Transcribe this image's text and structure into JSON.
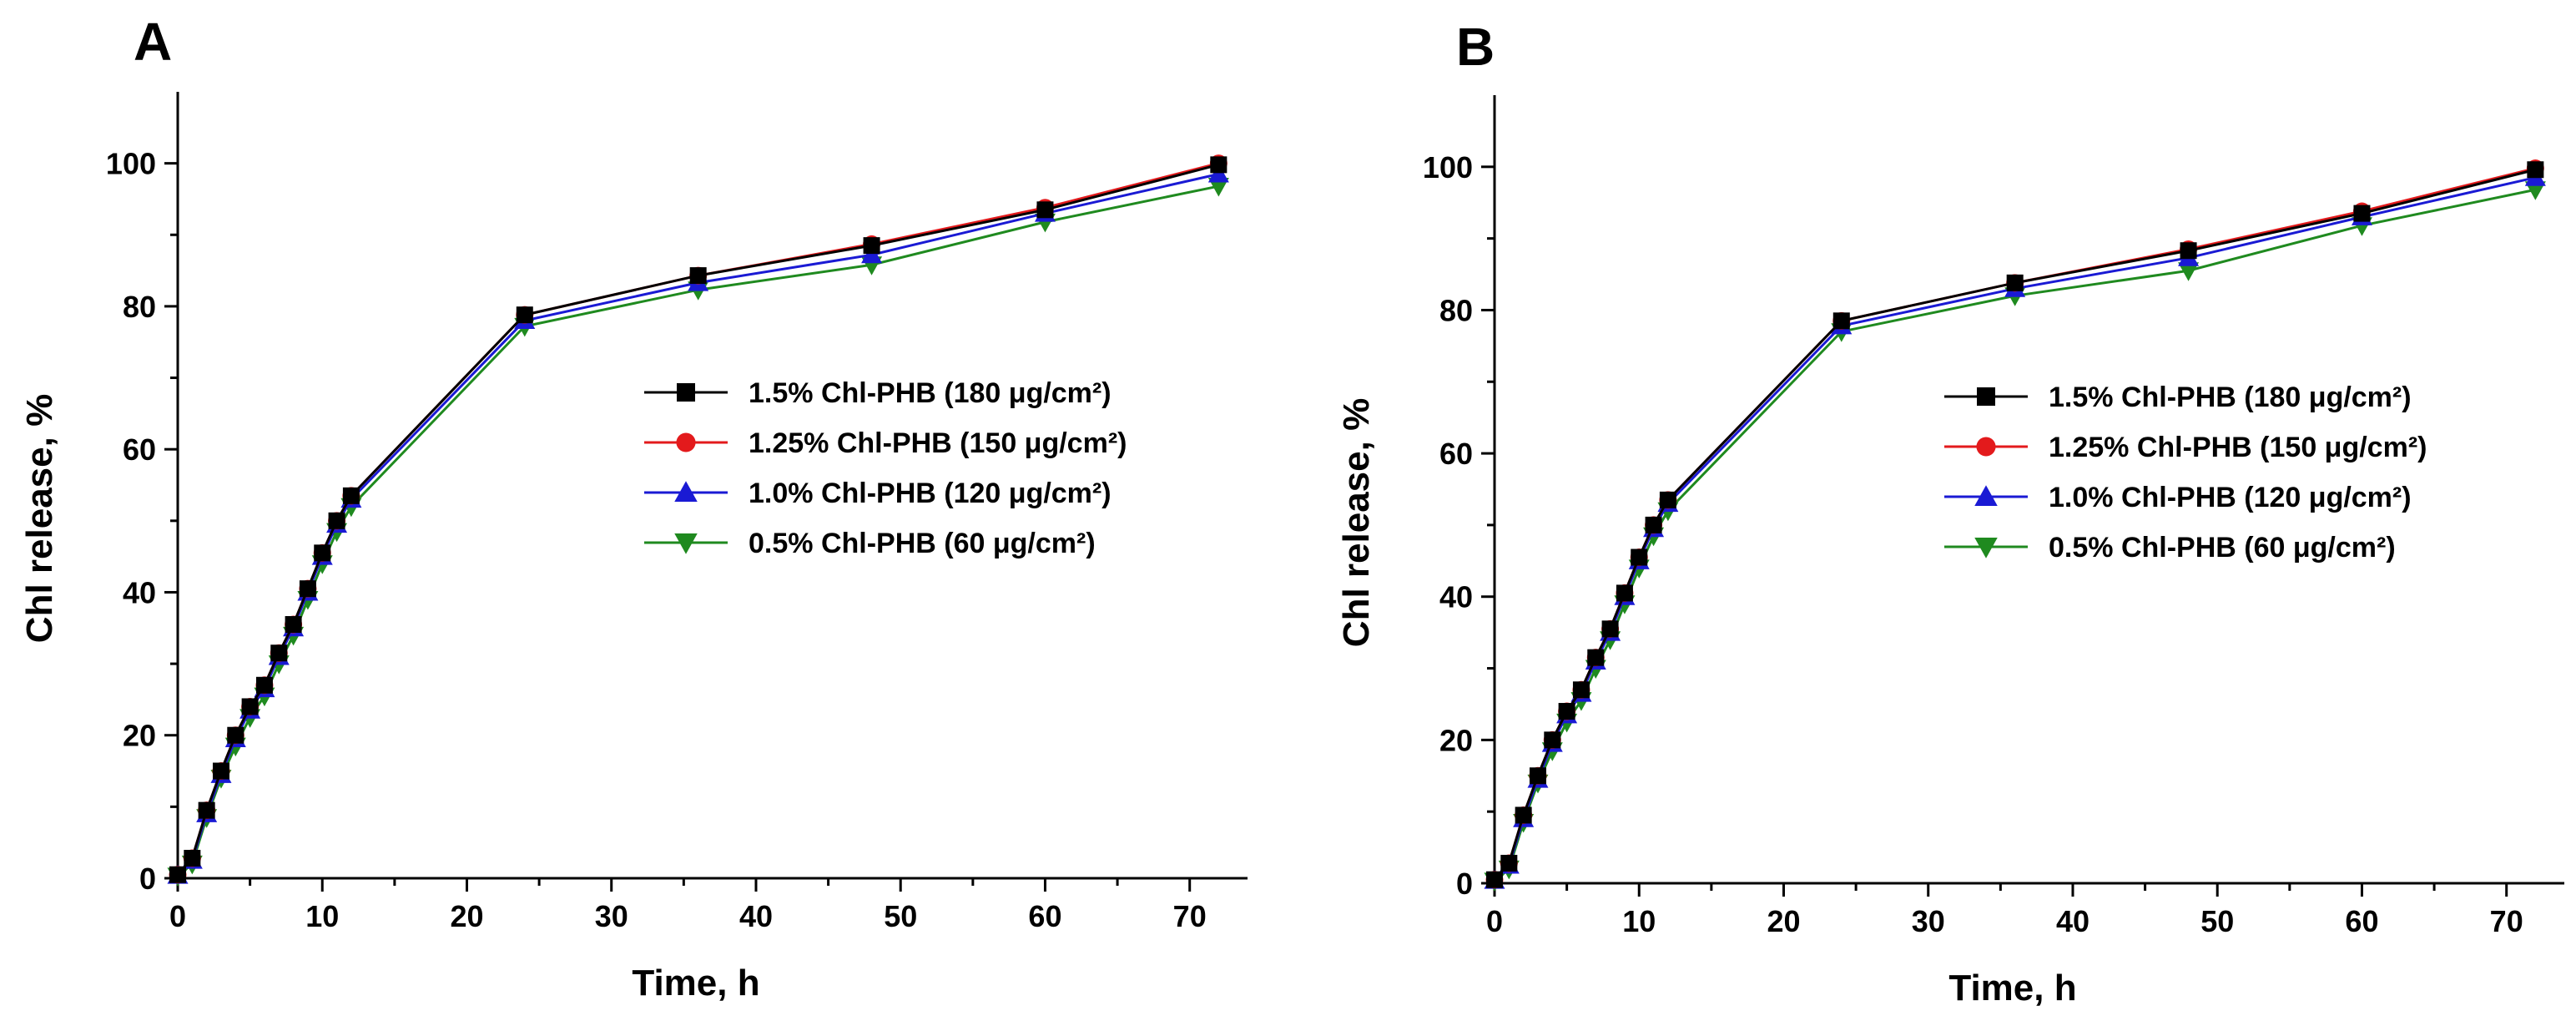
{
  "chart_data": [
    {
      "type": "line",
      "panel": "A",
      "xlabel": "Time, h",
      "ylabel": "Chl release, %",
      "xlim": [
        0,
        74
      ],
      "ylim": [
        0,
        110
      ],
      "xticks": [
        0,
        10,
        20,
        30,
        40,
        50,
        60,
        70
      ],
      "yticks": [
        0,
        20,
        40,
        60,
        80,
        100
      ],
      "x": [
        0,
        1,
        2,
        3,
        4,
        5,
        6,
        7,
        8,
        9,
        10,
        11,
        12,
        24,
        36,
        48,
        60,
        72
      ],
      "legend_position": "center-right",
      "series": [
        {
          "name": "1.5% Chl-PHB",
          "unit_label": "(180 μg/cm²)",
          "color": "#000000",
          "marker": "square",
          "values": [
            0.5,
            2.8,
            9.5,
            15,
            20,
            24,
            27,
            31.5,
            35.5,
            40.5,
            45.5,
            50,
            53.5,
            78.8,
            84.3,
            88.5,
            93.5,
            99.8
          ]
        },
        {
          "name": "1.25% Chl-PHB",
          "unit_label": "(150 μg/cm²)",
          "color": "#e31a1c",
          "marker": "circle",
          "values": [
            0.5,
            2.8,
            9.5,
            15,
            20,
            24,
            27,
            31.5,
            35.5,
            40.5,
            45.5,
            50,
            53.5,
            78.8,
            84.3,
            88.7,
            93.8,
            100
          ]
        },
        {
          "name": "1.0% Chl-PHB",
          "unit_label": "(120 μg/cm²)",
          "color": "#1a1ad4",
          "marker": "triangle-up",
          "values": [
            0.4,
            2.5,
            9,
            14.5,
            19.5,
            23.5,
            26.5,
            31,
            35,
            40,
            45,
            49.5,
            53,
            78,
            83.3,
            87.2,
            93,
            98.5
          ]
        },
        {
          "name": "0.5% Chl-PHB",
          "unit_label": "(60 μg/cm²)",
          "color": "#1f8a1f",
          "marker": "triangle-down",
          "values": [
            0.3,
            2,
            8.5,
            14,
            18.5,
            22.5,
            25.5,
            30,
            34,
            39,
            44,
            48.5,
            52,
            77.2,
            82.3,
            85.8,
            91.8,
            96.8
          ]
        }
      ]
    },
    {
      "type": "line",
      "panel": "B",
      "xlabel": "Time, h",
      "ylabel": "Chl release, %",
      "xlim": [
        0,
        74
      ],
      "ylim": [
        0,
        110
      ],
      "xticks": [
        0,
        10,
        20,
        30,
        40,
        50,
        60,
        70
      ],
      "yticks": [
        0,
        20,
        40,
        60,
        80,
        100
      ],
      "x": [
        0,
        1,
        2,
        3,
        4,
        5,
        6,
        7,
        8,
        9,
        10,
        11,
        12,
        24,
        36,
        48,
        60,
        72
      ],
      "legend_position": "center-right",
      "series": [
        {
          "name": "1.5% Chl-PHB",
          "unit_label": "(180 μg/cm²)",
          "color": "#000000",
          "marker": "square",
          "values": [
            0.5,
            2.8,
            9.5,
            15,
            20,
            24,
            27,
            31.5,
            35.5,
            40.5,
            45.5,
            50,
            53.5,
            78.5,
            83.8,
            88.3,
            93.5,
            99.6
          ]
        },
        {
          "name": "1.25% Chl-PHB",
          "unit_label": "(150 μg/cm²)",
          "color": "#e31a1c",
          "marker": "circle",
          "values": [
            0.5,
            2.8,
            9.5,
            15,
            20,
            24,
            27,
            31.5,
            35.5,
            40.5,
            45.5,
            50,
            53.5,
            78.5,
            83.8,
            88.5,
            93.8,
            99.8
          ]
        },
        {
          "name": "1.0% Chl-PHB",
          "unit_label": "(120 μg/cm²)",
          "color": "#1a1ad4",
          "marker": "triangle-up",
          "values": [
            0.4,
            2.5,
            9,
            14.5,
            19.5,
            23.5,
            26.5,
            31,
            35,
            40,
            45,
            49.5,
            53,
            77.8,
            83,
            87.3,
            93,
            98.5
          ]
        },
        {
          "name": "0.5% Chl-PHB",
          "unit_label": "(60 μg/cm²)",
          "color": "#1f8a1f",
          "marker": "triangle-down",
          "values": [
            0.3,
            2,
            8.5,
            14,
            18.5,
            22.5,
            25.5,
            30,
            34,
            39,
            44,
            48.5,
            52,
            77,
            82,
            85.5,
            91.8,
            96.8
          ]
        }
      ]
    }
  ]
}
